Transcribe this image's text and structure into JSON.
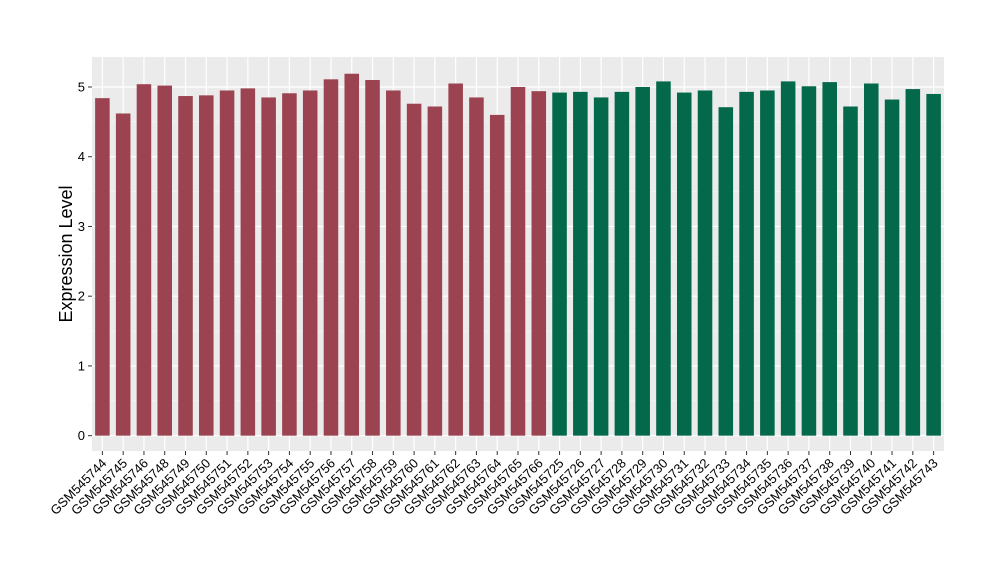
{
  "chart_data": {
    "type": "bar",
    "title": "",
    "xlabel": "",
    "ylabel": "Expression Level",
    "ylim": [
      -0.22,
      5.43
    ],
    "yticks": [
      0,
      1,
      2,
      3,
      4,
      5
    ],
    "grid": true,
    "legend": "none",
    "colors": {
      "panel": "#ebebeb",
      "grid_major": "#ffffff",
      "group_a": "#9b4350",
      "group_b": "#04684a"
    },
    "categories": [
      "GSM545744",
      "GSM545745",
      "GSM545746",
      "GSM545748",
      "GSM545749",
      "GSM545750",
      "GSM545751",
      "GSM545752",
      "GSM545753",
      "GSM545754",
      "GSM545755",
      "GSM545756",
      "GSM545757",
      "GSM545758",
      "GSM545759",
      "GSM545760",
      "GSM545761",
      "GSM545762",
      "GSM545763",
      "GSM545764",
      "GSM545765",
      "GSM545766",
      "GSM545725",
      "GSM545726",
      "GSM545727",
      "GSM545728",
      "GSM545729",
      "GSM545730",
      "GSM545731",
      "GSM545732",
      "GSM545733",
      "GSM545734",
      "GSM545735",
      "GSM545736",
      "GSM545737",
      "GSM545738",
      "GSM545739",
      "GSM545740",
      "GSM545741",
      "GSM545742",
      "GSM545743"
    ],
    "values": [
      4.84,
      4.62,
      5.04,
      5.02,
      4.87,
      4.88,
      4.95,
      4.98,
      4.85,
      4.91,
      4.95,
      5.11,
      5.19,
      5.1,
      4.95,
      4.76,
      4.72,
      5.05,
      4.85,
      4.6,
      5.0,
      4.94,
      4.92,
      4.93,
      4.85,
      4.93,
      5.0,
      5.08,
      4.92,
      4.95,
      4.71,
      4.93,
      4.95,
      5.08,
      5.01,
      5.07,
      4.72,
      5.05,
      4.82,
      4.97,
      4.9
    ],
    "bar_groups": [
      "a",
      "a",
      "a",
      "a",
      "a",
      "a",
      "a",
      "a",
      "a",
      "a",
      "a",
      "a",
      "a",
      "a",
      "a",
      "a",
      "a",
      "a",
      "a",
      "a",
      "a",
      "a",
      "b",
      "b",
      "b",
      "b",
      "b",
      "b",
      "b",
      "b",
      "b",
      "b",
      "b",
      "b",
      "b",
      "b",
      "b",
      "b",
      "b",
      "b",
      "b"
    ]
  }
}
